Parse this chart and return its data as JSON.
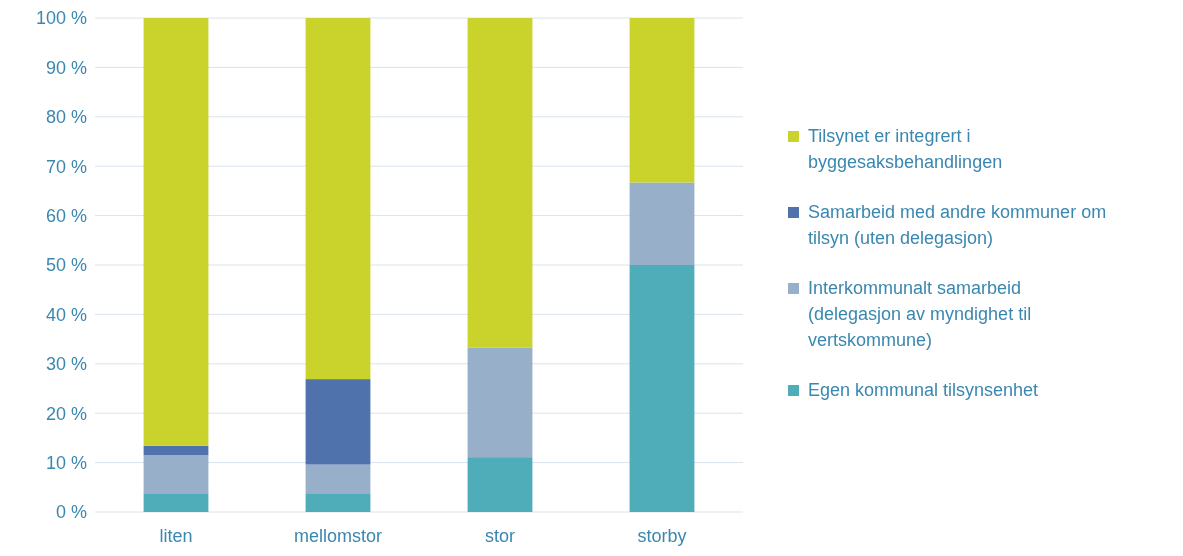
{
  "chart_data": {
    "type": "bar",
    "stacked": true,
    "categories": [
      "liten",
      "mellomstor",
      "stor",
      "storby"
    ],
    "series": [
      {
        "name": "Egen kommunal tilsynsenhet",
        "color": "#4fadb9",
        "values": [
          3.8,
          3.8,
          11.1,
          50
        ]
      },
      {
        "name": "Interkommunalt samarbeid (delegasjon av myndighet til vertskommune)",
        "color": "#97afc8",
        "values": [
          7.7,
          5.8,
          22.2,
          16.7
        ]
      },
      {
        "name": "Samarbeid med andre kommuner om tilsyn (uten delegasjon)",
        "color": "#4f72ad",
        "values": [
          1.9,
          17.3,
          0,
          0
        ]
      },
      {
        "name": "Tilsynet er integrert i byggesaksbehandlingen",
        "color": "#c9d32b",
        "values": [
          86.6,
          73.1,
          66.7,
          33.3
        ]
      }
    ],
    "ylim": [
      0,
      100
    ],
    "yticks": [
      {
        "value": 0,
        "label": "0 %"
      },
      {
        "value": 10,
        "label": "10 %"
      },
      {
        "value": 20,
        "label": "20 %"
      },
      {
        "value": 30,
        "label": "30 %"
      },
      {
        "value": 40,
        "label": "40 %"
      },
      {
        "value": 50,
        "label": "50 %"
      },
      {
        "value": 60,
        "label": "60 %"
      },
      {
        "value": 70,
        "label": "70 %"
      },
      {
        "value": 80,
        "label": "80 %"
      },
      {
        "value": 90,
        "label": "90 %"
      },
      {
        "value": 100,
        "label": "100 %"
      }
    ],
    "grid": "y",
    "legend": "right"
  }
}
